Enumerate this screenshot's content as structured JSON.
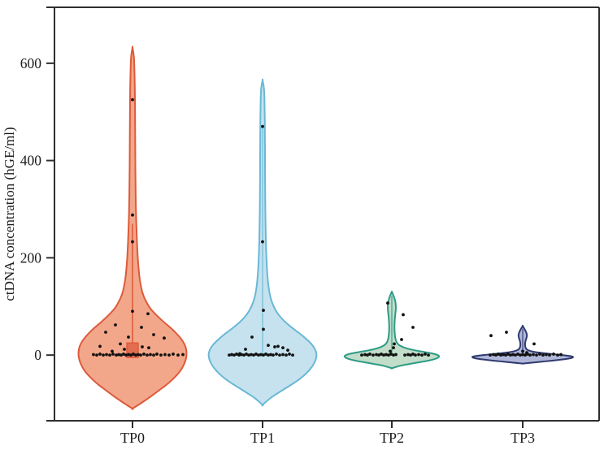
{
  "figure": {
    "background": "#ffffff",
    "axis_color": "#2e2e2e",
    "point_color": "#121212"
  },
  "chart_data": {
    "type": "violin",
    "title": "",
    "xlabel": "",
    "ylabel": "ctDNA concentration (hGE/ml)",
    "categories": [
      "TP0",
      "TP1",
      "TP2",
      "TP3"
    ],
    "yticks": [
      0,
      200,
      400,
      600
    ],
    "ylim": [
      -135,
      715
    ],
    "grid": false,
    "legend": null,
    "points_format": "[x_jitter_px_from_center, value_hGE_per_ml]",
    "profile_format": "[value_hGE_per_ml, half_width_px]",
    "series": [
      {
        "name": "TP0",
        "stroke": "#dd5a3b",
        "fill": "#f3a78a",
        "violin_range": [
          -110,
          632
        ],
        "box": {
          "lo": -5,
          "hi": 25,
          "whisker_high": 270,
          "half_width": 7
        },
        "center_line": null,
        "profile": [
          [
            632,
            0
          ],
          [
            615,
            1.6
          ],
          [
            595,
            2.2
          ],
          [
            570,
            2.6
          ],
          [
            540,
            2.9
          ],
          [
            510,
            3.1
          ],
          [
            480,
            3.2
          ],
          [
            450,
            3.3
          ],
          [
            420,
            3.4
          ],
          [
            390,
            3.5
          ],
          [
            360,
            3.7
          ],
          [
            330,
            3.9
          ],
          [
            300,
            4.2
          ],
          [
            275,
            4.6
          ],
          [
            250,
            5.1
          ],
          [
            225,
            5.7
          ],
          [
            200,
            6.5
          ],
          [
            180,
            7.4
          ],
          [
            160,
            8.6
          ],
          [
            145,
            10
          ],
          [
            130,
            12
          ],
          [
            118,
            14.5
          ],
          [
            108,
            17.5
          ],
          [
            98,
            21
          ],
          [
            88,
            26
          ],
          [
            78,
            32
          ],
          [
            68,
            38.5
          ],
          [
            58,
            45.5
          ],
          [
            48,
            52
          ],
          [
            38,
            57.5
          ],
          [
            28,
            62
          ],
          [
            18,
            65
          ],
          [
            8,
            66.3
          ],
          [
            -2,
            66.3
          ],
          [
            -12,
            65
          ],
          [
            -22,
            62.5
          ],
          [
            -32,
            59
          ],
          [
            -42,
            54
          ],
          [
            -52,
            48
          ],
          [
            -62,
            41
          ],
          [
            -72,
            33
          ],
          [
            -82,
            25
          ],
          [
            -92,
            16.5
          ],
          [
            -101,
            8.5
          ],
          [
            -110,
            0
          ]
        ],
        "points": [
          [
            0,
            525
          ],
          [
            0,
            288
          ],
          [
            0,
            233
          ],
          [
            0,
            90
          ],
          [
            19,
            85
          ],
          [
            -21,
            62
          ],
          [
            11,
            57
          ],
          [
            -33,
            47
          ],
          [
            26,
            42
          ],
          [
            -5,
            37
          ],
          [
            39,
            35
          ],
          [
            -15,
            23
          ],
          [
            -40,
            18
          ],
          [
            12,
            17
          ],
          [
            20,
            15
          ],
          [
            -10,
            12
          ],
          [
            -25,
            8
          ],
          [
            -48,
            1
          ],
          [
            -44,
            0
          ],
          [
            -40,
            2
          ],
          [
            -36,
            0
          ],
          [
            -32,
            1
          ],
          [
            -28,
            0
          ],
          [
            -24,
            2
          ],
          [
            -20,
            0
          ],
          [
            -17,
            1
          ],
          [
            -14,
            0
          ],
          [
            -11,
            2
          ],
          [
            -8,
            0
          ],
          [
            -5,
            1
          ],
          [
            -2,
            0
          ],
          [
            1,
            2
          ],
          [
            4,
            0
          ],
          [
            7,
            1
          ],
          [
            10,
            0
          ],
          [
            14,
            2
          ],
          [
            18,
            0
          ],
          [
            22,
            1
          ],
          [
            26,
            0
          ],
          [
            30,
            2
          ],
          [
            35,
            0
          ],
          [
            40,
            1
          ],
          [
            45,
            0
          ],
          [
            50,
            2
          ],
          [
            56,
            0
          ],
          [
            62,
            1
          ]
        ]
      },
      {
        "name": "TP1",
        "stroke": "#69b8d6",
        "fill": "#c5e2ee",
        "violin_range": [
          -102,
          565
        ],
        "box": null,
        "center_line": [
          0,
          468
        ],
        "profile": [
          [
            565,
            0
          ],
          [
            550,
            1.6
          ],
          [
            532,
            2.2
          ],
          [
            510,
            2.5
          ],
          [
            488,
            2.7
          ],
          [
            465,
            2.8
          ],
          [
            440,
            2.9
          ],
          [
            415,
            3.0
          ],
          [
            390,
            3.0
          ],
          [
            365,
            3.1
          ],
          [
            340,
            3.2
          ],
          [
            315,
            3.3
          ],
          [
            290,
            3.5
          ],
          [
            265,
            3.7
          ],
          [
            240,
            4.0
          ],
          [
            215,
            4.4
          ],
          [
            195,
            4.9
          ],
          [
            175,
            5.5
          ],
          [
            155,
            6.4
          ],
          [
            140,
            7.4
          ],
          [
            125,
            8.9
          ],
          [
            112,
            10.9
          ],
          [
            102,
            13.2
          ],
          [
            92,
            16.2
          ],
          [
            82,
            20.2
          ],
          [
            72,
            25.5
          ],
          [
            62,
            32
          ],
          [
            52,
            39.5
          ],
          [
            42,
            47.5
          ],
          [
            32,
            54.5
          ],
          [
            22,
            60.5
          ],
          [
            12,
            64.5
          ],
          [
            2,
            66.3
          ],
          [
            -8,
            65.6
          ],
          [
            -18,
            63
          ],
          [
            -28,
            59
          ],
          [
            -38,
            53.5
          ],
          [
            -48,
            46.5
          ],
          [
            -58,
            38
          ],
          [
            -68,
            28.5
          ],
          [
            -78,
            19
          ],
          [
            -88,
            10
          ],
          [
            -102,
            0
          ]
        ],
        "points": [
          [
            0,
            470
          ],
          [
            0,
            233
          ],
          [
            1,
            92
          ],
          [
            1,
            53
          ],
          [
            -13,
            37
          ],
          [
            7,
            20
          ],
          [
            19,
            18
          ],
          [
            15,
            17
          ],
          [
            25,
            15
          ],
          [
            -21,
            12
          ],
          [
            31,
            10
          ],
          [
            -28,
            3
          ],
          [
            -41,
            0
          ],
          [
            -38,
            1
          ],
          [
            -35,
            0
          ],
          [
            -32,
            2
          ],
          [
            -29,
            0
          ],
          [
            -26,
            1
          ],
          [
            -23,
            0
          ],
          [
            -20,
            2
          ],
          [
            -17,
            0
          ],
          [
            -14,
            1
          ],
          [
            -11,
            0
          ],
          [
            -8,
            2
          ],
          [
            -5,
            0
          ],
          [
            -2,
            1
          ],
          [
            1,
            0
          ],
          [
            4,
            2
          ],
          [
            7,
            0
          ],
          [
            10,
            1
          ],
          [
            13,
            0
          ],
          [
            17,
            2
          ],
          [
            21,
            0
          ],
          [
            25,
            1
          ],
          [
            29,
            0
          ],
          [
            33,
            2
          ],
          [
            37,
            0
          ]
        ]
      },
      {
        "name": "TP2",
        "stroke": "#2d9c85",
        "fill": "#c2ddca",
        "violin_range": [
          -27,
          130
        ],
        "box": null,
        "center_line": [
          0,
          122
        ],
        "profile": [
          [
            130,
            0
          ],
          [
            125,
            1.4
          ],
          [
            119,
            2.8
          ],
          [
            113,
            3.9
          ],
          [
            107,
            4.6
          ],
          [
            101,
            4.9
          ],
          [
            95,
            4.9
          ],
          [
            89,
            4.6
          ],
          [
            83,
            4.2
          ],
          [
            76,
            3.8
          ],
          [
            69,
            3.5
          ],
          [
            62,
            3.3
          ],
          [
            55,
            3.3
          ],
          [
            49,
            3.4
          ],
          [
            43,
            3.7
          ],
          [
            37,
            4.1
          ],
          [
            32,
            4.7
          ],
          [
            27,
            5.8
          ],
          [
            23,
            7.5
          ],
          [
            19,
            10.5
          ],
          [
            16,
            14.5
          ],
          [
            13,
            20
          ],
          [
            10,
            28
          ],
          [
            7,
            38
          ],
          [
            4,
            48
          ],
          [
            1,
            55
          ],
          [
            -2,
            58
          ],
          [
            -5,
            57
          ],
          [
            -8,
            53
          ],
          [
            -11,
            46
          ],
          [
            -14,
            36.5
          ],
          [
            -17,
            26
          ],
          [
            -20,
            16
          ],
          [
            -23,
            8
          ],
          [
            -27,
            0
          ]
        ],
        "points": [
          [
            -5,
            107
          ],
          [
            14,
            83
          ],
          [
            26,
            57
          ],
          [
            12,
            32
          ],
          [
            3,
            23
          ],
          [
            2,
            15
          ],
          [
            -2,
            8
          ],
          [
            -37,
            0
          ],
          [
            -33,
            1
          ],
          [
            -30,
            0
          ],
          [
            -27,
            2
          ],
          [
            -23,
            0
          ],
          [
            -19,
            1
          ],
          [
            -16,
            0
          ],
          [
            -13,
            2
          ],
          [
            -10,
            0
          ],
          [
            -7,
            1
          ],
          [
            -4,
            0
          ],
          [
            -1,
            2
          ],
          [
            2,
            0
          ],
          [
            5,
            1
          ],
          [
            16,
            0
          ],
          [
            20,
            1
          ],
          [
            23,
            0
          ],
          [
            26,
            2
          ],
          [
            29,
            0
          ],
          [
            33,
            1
          ],
          [
            37,
            0
          ],
          [
            41,
            2
          ],
          [
            45,
            0
          ]
        ]
      },
      {
        "name": "TP3",
        "stroke": "#2f3a6e",
        "fill": "#b0b7d9",
        "violin_range": [
          -17.5,
          60
        ],
        "box": null,
        "center_line": [
          0,
          54
        ],
        "profile": [
          [
            60,
            0
          ],
          [
            56,
            1.4
          ],
          [
            52,
            2.8
          ],
          [
            47,
            4.2
          ],
          [
            43,
            5.0
          ],
          [
            39,
            5.1
          ],
          [
            35,
            4.6
          ],
          [
            31,
            3.8
          ],
          [
            27,
            3.2
          ],
          [
            23,
            2.9
          ],
          [
            19,
            3.0
          ],
          [
            16,
            3.4
          ],
          [
            13,
            4.3
          ],
          [
            11,
            5.8
          ],
          [
            9,
            8.5
          ],
          [
            7,
            13
          ],
          [
            5,
            20.5
          ],
          [
            3,
            31
          ],
          [
            1,
            43
          ],
          [
            -1,
            54
          ],
          [
            -3,
            61
          ],
          [
            -5,
            61.5
          ],
          [
            -7,
            57
          ],
          [
            -9,
            49
          ],
          [
            -11,
            38.5
          ],
          [
            -13,
            26.5
          ],
          [
            -15,
            15
          ],
          [
            -16.5,
            6
          ],
          [
            -17.5,
            0
          ]
        ],
        "points": [
          [
            -39,
            40
          ],
          [
            -20,
            47
          ],
          [
            14,
            23
          ],
          [
            0,
            8
          ],
          [
            5,
            5
          ],
          [
            -40,
            0
          ],
          [
            -36,
            1
          ],
          [
            -33,
            0
          ],
          [
            -30,
            2
          ],
          [
            -27,
            0
          ],
          [
            -24,
            1
          ],
          [
            -21,
            0
          ],
          [
            -18,
            2
          ],
          [
            -15,
            0
          ],
          [
            -12,
            1
          ],
          [
            -9,
            0
          ],
          [
            -6,
            2
          ],
          [
            -3,
            0
          ],
          [
            0,
            1
          ],
          [
            3,
            0
          ],
          [
            6,
            2
          ],
          [
            9,
            0
          ],
          [
            13,
            1
          ],
          [
            17,
            0
          ],
          [
            21,
            2
          ],
          [
            25,
            0
          ],
          [
            29,
            1
          ],
          [
            33,
            0
          ],
          [
            38,
            2
          ],
          [
            43,
            0
          ],
          [
            47,
            1
          ]
        ]
      }
    ]
  }
}
